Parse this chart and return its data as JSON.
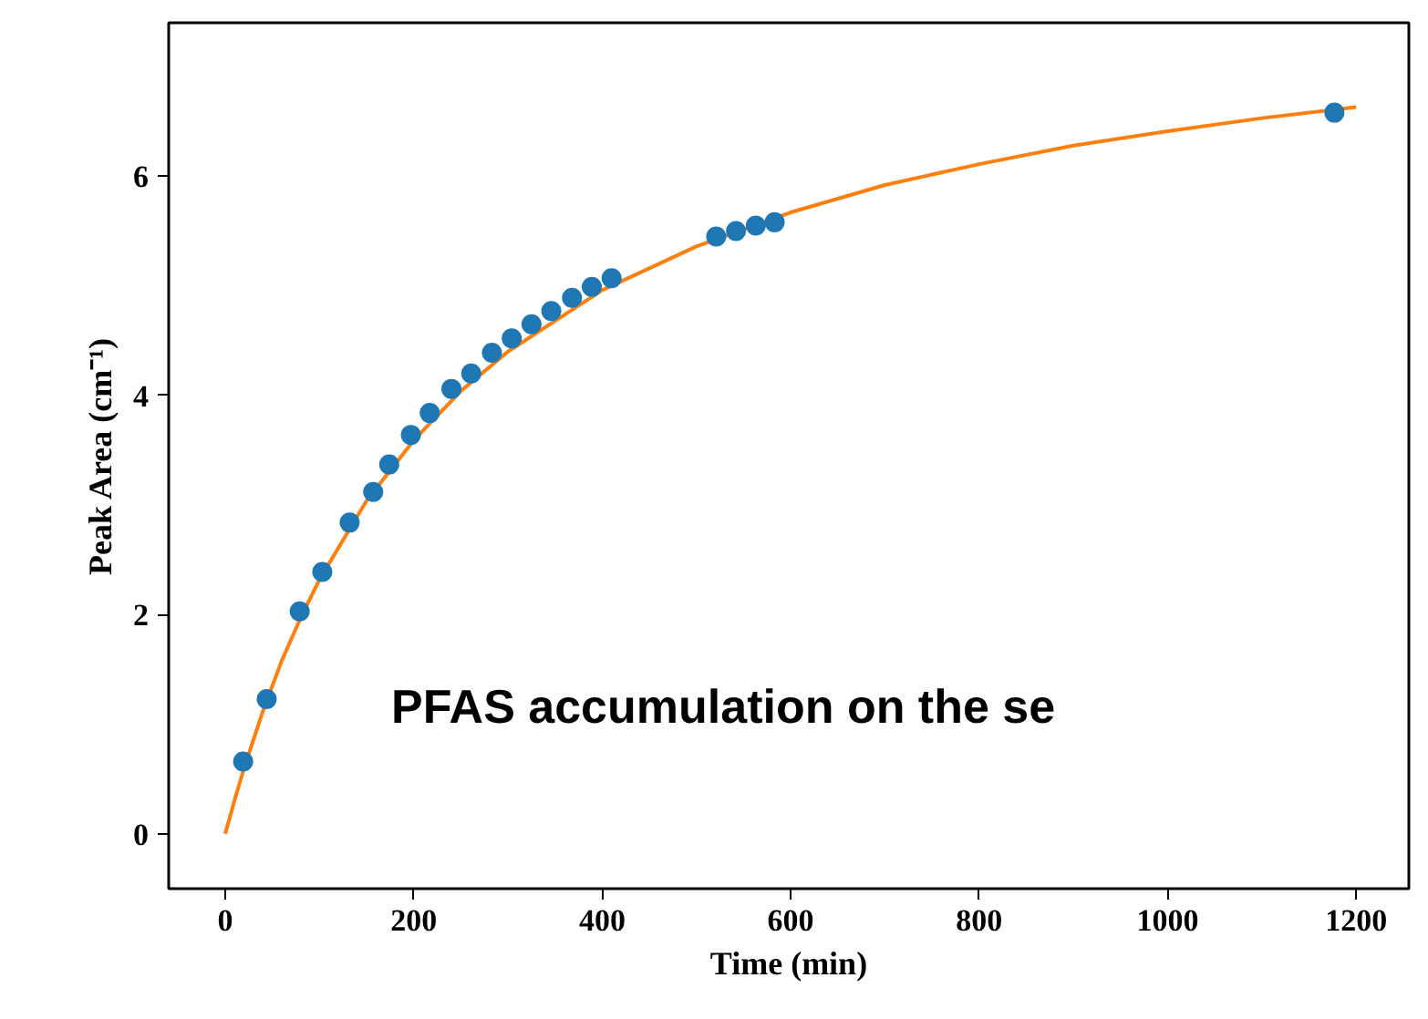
{
  "chart_data": {
    "type": "scatter",
    "xlabel": "Time (min)",
    "ylabel": "Peak Area (cm⁻¹)",
    "xlim": [
      -60,
      1256
    ],
    "ylim": [
      -0.5,
      7.4
    ],
    "xticks": [
      0,
      200,
      400,
      600,
      800,
      1000,
      1200
    ],
    "yticks": [
      0,
      2,
      4,
      6
    ],
    "grid": false,
    "marker": "circle",
    "annotations": [
      "PFAS accumulation on the se"
    ],
    "series": [
      {
        "color": "#1f77b4",
        "x": [
          19,
          44,
          79,
          103,
          132,
          157,
          174,
          197,
          217,
          240,
          261,
          283,
          304,
          325,
          346,
          368,
          389,
          410,
          521,
          542,
          563,
          583,
          1177
        ],
        "values": [
          0.66,
          1.23,
          2.03,
          2.39,
          2.84,
          3.12,
          3.37,
          3.64,
          3.84,
          4.06,
          4.2,
          4.39,
          4.52,
          4.65,
          4.77,
          4.89,
          4.99,
          5.07,
          5.45,
          5.5,
          5.55,
          5.58,
          6.58
        ]
      },
      {
        "type": "line",
        "color": "#ff7f0e",
        "marker": "none",
        "x": [
          0,
          10,
          20,
          40,
          60,
          80,
          100,
          150,
          200,
          250,
          300,
          400,
          500,
          600,
          700,
          800,
          900,
          1000,
          1100,
          1200
        ],
        "values": [
          0,
          0.31,
          0.6,
          1.12,
          1.58,
          1.97,
          2.32,
          3.04,
          3.59,
          4.04,
          4.4,
          4.96,
          5.36,
          5.67,
          5.92,
          6.11,
          6.28,
          6.41,
          6.53,
          6.63
        ]
      }
    ]
  }
}
